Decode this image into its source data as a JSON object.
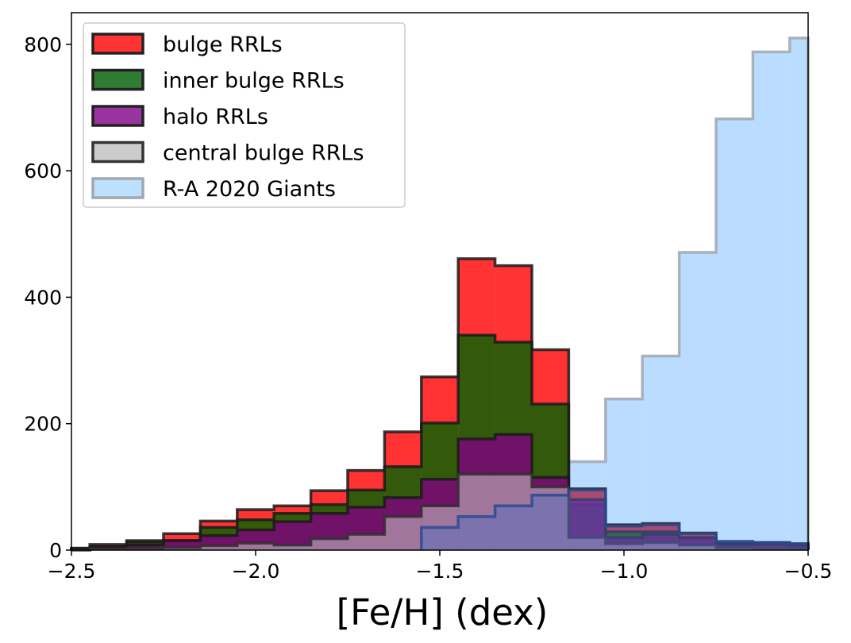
{
  "chart_data": {
    "type": "histogram",
    "title": "",
    "xlabel": "[Fe/H] (dex)",
    "ylabel": "",
    "xlim": [
      -2.5,
      -0.5
    ],
    "ylim": [
      0,
      850
    ],
    "xticks": [
      -2.5,
      -2.0,
      -1.5,
      -1.0,
      -0.5
    ],
    "xtick_labels": [
      "−2.5",
      "−2.0",
      "−1.5",
      "−1.0",
      "−0.5"
    ],
    "yticks": [
      0,
      200,
      400,
      600,
      800
    ],
    "ytick_labels": [
      "0",
      "200",
      "400",
      "600",
      "800"
    ],
    "grid": false,
    "legend_position": "top-left",
    "series": [
      {
        "name": "R-A 2020 Giants",
        "fill": "#b3d8ff",
        "edge": "#a0a7b0",
        "opacity": 0.9,
        "bins": [
          [
            -1.15,
            -1.05,
            140
          ],
          [
            -1.05,
            -0.95,
            239
          ],
          [
            -0.95,
            -0.85,
            307
          ],
          [
            -0.85,
            -0.75,
            471
          ],
          [
            -0.75,
            -0.65,
            682
          ],
          [
            -0.65,
            -0.55,
            788
          ],
          [
            -0.55,
            -0.5,
            810
          ]
        ]
      },
      {
        "name": "bulge RRLs",
        "fill": "#ff0000",
        "edge": "#1a1a1a",
        "opacity": 0.8,
        "bins": [
          [
            -2.55,
            -2.45,
            3
          ],
          [
            -2.45,
            -2.35,
            9
          ],
          [
            -2.35,
            -2.25,
            15
          ],
          [
            -2.25,
            -2.15,
            26
          ],
          [
            -2.15,
            -2.05,
            46
          ],
          [
            -2.05,
            -1.95,
            64
          ],
          [
            -1.95,
            -1.85,
            70
          ],
          [
            -1.85,
            -1.75,
            94
          ],
          [
            -1.75,
            -1.65,
            126
          ],
          [
            -1.65,
            -1.55,
            187
          ],
          [
            -1.55,
            -1.45,
            274
          ],
          [
            -1.45,
            -1.35,
            461
          ],
          [
            -1.35,
            -1.25,
            450
          ],
          [
            -1.25,
            -1.15,
            317
          ],
          [
            -1.15,
            -1.05,
            97
          ],
          [
            -1.05,
            -0.95,
            40
          ],
          [
            -0.95,
            -0.85,
            42
          ],
          [
            -0.85,
            -0.75,
            27
          ],
          [
            -0.75,
            -0.65,
            12
          ],
          [
            -0.65,
            -0.55,
            12
          ],
          [
            -0.55,
            -0.45,
            10
          ]
        ]
      },
      {
        "name": "inner bulge RRLs",
        "fill": "#006400",
        "edge": "#1a1a1a",
        "opacity": 0.8,
        "bins": [
          [
            -2.55,
            -2.45,
            3
          ],
          [
            -2.45,
            -2.35,
            5
          ],
          [
            -2.35,
            -2.25,
            13
          ],
          [
            -2.25,
            -2.15,
            15
          ],
          [
            -2.15,
            -2.05,
            36
          ],
          [
            -2.05,
            -1.95,
            48
          ],
          [
            -1.95,
            -1.85,
            58
          ],
          [
            -1.85,
            -1.75,
            72
          ],
          [
            -1.75,
            -1.65,
            95
          ],
          [
            -1.65,
            -1.55,
            132
          ],
          [
            -1.55,
            -1.45,
            201
          ],
          [
            -1.45,
            -1.35,
            340
          ],
          [
            -1.35,
            -1.25,
            329
          ],
          [
            -1.25,
            -1.15,
            231
          ],
          [
            -1.15,
            -1.05,
            72
          ],
          [
            -1.05,
            -0.95,
            29
          ],
          [
            -0.95,
            -0.85,
            29
          ],
          [
            -0.85,
            -0.75,
            18
          ],
          [
            -0.75,
            -0.65,
            8
          ],
          [
            -0.65,
            -0.55,
            8
          ],
          [
            -0.55,
            -0.45,
            6
          ]
        ]
      },
      {
        "name": "halo RRLs",
        "fill": "#800080",
        "edge": "#1a1a1a",
        "opacity": 0.8,
        "bins": [
          [
            -2.55,
            -2.45,
            2
          ],
          [
            -2.45,
            -2.35,
            5
          ],
          [
            -2.35,
            -2.25,
            8
          ],
          [
            -2.25,
            -2.15,
            15
          ],
          [
            -2.15,
            -2.05,
            23
          ],
          [
            -2.05,
            -1.95,
            32
          ],
          [
            -1.95,
            -1.85,
            45
          ],
          [
            -1.85,
            -1.75,
            58
          ],
          [
            -1.75,
            -1.65,
            68
          ],
          [
            -1.65,
            -1.55,
            83
          ],
          [
            -1.55,
            -1.45,
            112
          ],
          [
            -1.45,
            -1.35,
            176
          ],
          [
            -1.35,
            -1.25,
            183
          ],
          [
            -1.25,
            -1.15,
            115
          ],
          [
            -1.15,
            -1.05,
            80
          ],
          [
            -1.05,
            -0.95,
            20
          ],
          [
            -0.95,
            -0.85,
            25
          ],
          [
            -0.85,
            -0.75,
            20
          ],
          [
            -0.75,
            -0.65,
            10
          ],
          [
            -0.65,
            -0.55,
            10
          ],
          [
            -0.55,
            -0.45,
            8
          ]
        ]
      },
      {
        "name": "central bulge RRLs",
        "fill": "#c8c8c8",
        "edge": "#303030",
        "opacity": 0.55,
        "bins": [
          [
            -2.55,
            -2.45,
            0
          ],
          [
            -2.45,
            -2.35,
            2
          ],
          [
            -2.35,
            -2.25,
            3
          ],
          [
            -2.25,
            -2.15,
            4
          ],
          [
            -2.15,
            -2.05,
            7
          ],
          [
            -2.05,
            -1.95,
            11
          ],
          [
            -1.95,
            -1.85,
            8
          ],
          [
            -1.85,
            -1.75,
            18
          ],
          [
            -1.75,
            -1.65,
            25
          ],
          [
            -1.65,
            -1.55,
            53
          ],
          [
            -1.55,
            -1.45,
            70
          ],
          [
            -1.45,
            -1.35,
            120
          ],
          [
            -1.35,
            -1.25,
            120
          ],
          [
            -1.25,
            -1.15,
            100
          ],
          [
            -1.15,
            -1.05,
            20
          ],
          [
            -1.05,
            -0.95,
            10
          ],
          [
            -0.95,
            -0.85,
            12
          ],
          [
            -0.85,
            -0.75,
            8
          ],
          [
            -0.75,
            -0.65,
            4
          ],
          [
            -0.65,
            -0.55,
            3
          ],
          [
            -0.55,
            -0.45,
            2
          ]
        ]
      },
      {
        "name": "blue overlay",
        "fill": "#4f6fc0",
        "edge": "#2a4a90",
        "opacity": 0.45,
        "bins": [
          [
            -1.55,
            -1.45,
            36
          ],
          [
            -1.45,
            -1.35,
            53
          ],
          [
            -1.35,
            -1.25,
            70
          ],
          [
            -1.25,
            -1.15,
            87
          ],
          [
            -1.15,
            -1.05,
            95
          ],
          [
            -1.05,
            -0.95,
            38
          ],
          [
            -0.95,
            -0.85,
            40
          ],
          [
            -0.85,
            -0.75,
            26
          ],
          [
            -0.75,
            -0.65,
            14
          ],
          [
            -0.65,
            -0.55,
            12
          ],
          [
            -0.55,
            -0.45,
            10
          ]
        ]
      }
    ],
    "legend": [
      {
        "label": "bulge RRLs",
        "fill": "#ff3333",
        "edge": "#222222"
      },
      {
        "label": "inner bulge RRLs",
        "fill": "#2e7d32",
        "edge": "#222222"
      },
      {
        "label": "halo RRLs",
        "fill": "#9933a0",
        "edge": "#222222"
      },
      {
        "label": "central bulge RRLs",
        "fill": "#cccccc",
        "edge": "#333333"
      },
      {
        "label": "R-A 2020 Giants",
        "fill": "#bde0ff",
        "edge": "#a0a7b0"
      }
    ]
  }
}
